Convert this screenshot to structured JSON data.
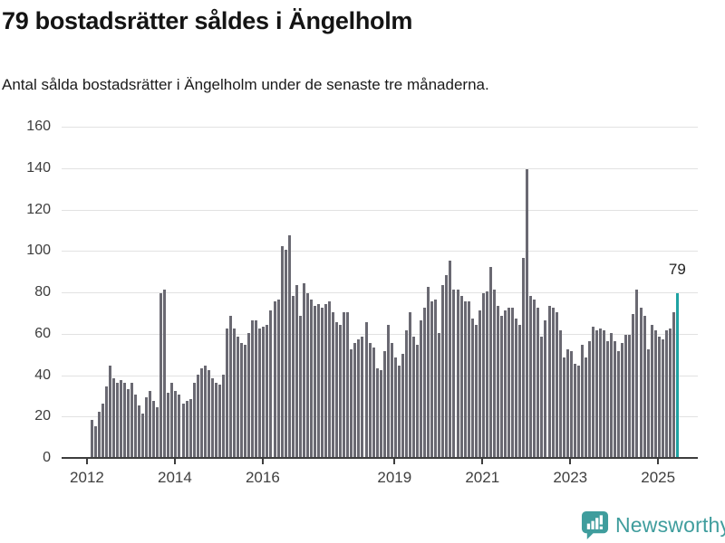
{
  "header": {
    "title": "79 bostadsrätter såldes i Ängelholm",
    "subtitle": "Antal sålda bostadsrätter i Ängelholm under de senaste tre månaderna."
  },
  "chart_data": {
    "type": "bar",
    "title": "79 bostadsrätter såldes i Ängelholm",
    "subtitle": "Antal sålda bostadsrätter i Ängelholm under de senaste tre månaderna.",
    "x_start_month": "2012-02",
    "x_end_month": "2025-06",
    "ylim": [
      0,
      160
    ],
    "yticks": [
      0,
      20,
      40,
      60,
      80,
      100,
      120,
      140,
      160
    ],
    "grid": true,
    "xticks": [
      {
        "label": "2012",
        "month_index": -1
      },
      {
        "label": "2014",
        "month_index": 23
      },
      {
        "label": "2016",
        "month_index": 47
      },
      {
        "label": "2019",
        "month_index": 83
      },
      {
        "label": "2021",
        "month_index": 107
      },
      {
        "label": "2023",
        "month_index": 131
      },
      {
        "label": "2025",
        "month_index": 155
      }
    ],
    "values": [
      18,
      15,
      22,
      26,
      34,
      44,
      38,
      36,
      37,
      36,
      33,
      36,
      30,
      25,
      21,
      29,
      32,
      27,
      24,
      79,
      81,
      31,
      36,
      32,
      30,
      26,
      27,
      28,
      36,
      40,
      43,
      44,
      42,
      38,
      36,
      35,
      40,
      62,
      68,
      62,
      58,
      55,
      54,
      60,
      66,
      66,
      62,
      63,
      64,
      71,
      75,
      76,
      102,
      100,
      107,
      78,
      83,
      68,
      84,
      79,
      76,
      73,
      74,
      72,
      74,
      75,
      70,
      65,
      64,
      70,
      70,
      52,
      55,
      57,
      58,
      65,
      55,
      53,
      43,
      42,
      51,
      64,
      55,
      48,
      44,
      50,
      61,
      70,
      58,
      54,
      66,
      72,
      82,
      75,
      76,
      60,
      83,
      88,
      95,
      81,
      81,
      78,
      75,
      75,
      67,
      64,
      71,
      79,
      80,
      92,
      81,
      73,
      68,
      71,
      72,
      72,
      67,
      64,
      96,
      139,
      78,
      76,
      72,
      58,
      66,
      73,
      72,
      70,
      61,
      48,
      52,
      51,
      45,
      44,
      54,
      48,
      56,
      63,
      61,
      62,
      61,
      56,
      60,
      56,
      51,
      55,
      59,
      59,
      69,
      81,
      72,
      68,
      52,
      64,
      61,
      58,
      57,
      61,
      62,
      70,
      79
    ],
    "highlight": {
      "index": 160,
      "value": 79,
      "label": "79"
    },
    "colors": {
      "bar": "#6a6972",
      "highlight": "#1fa3a3",
      "grid": "#e2e2e2",
      "axis": "#3d3d3d"
    }
  },
  "footer": {
    "brand": "Newsworthy",
    "brand_color": "#3f9d9d",
    "logo_icon": "bar-chart-speech-bubble-icon"
  }
}
